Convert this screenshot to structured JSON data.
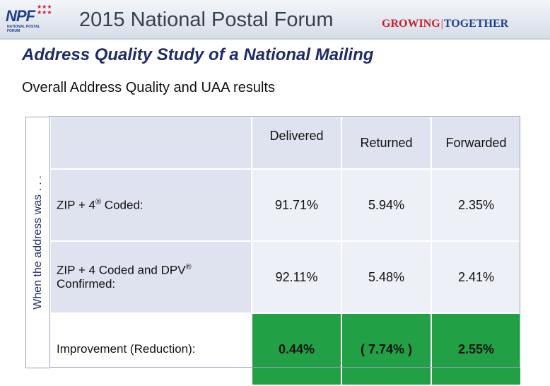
{
  "header": {
    "logo_text": "NPF",
    "logo_subtext": "NATIONAL POSTAL FORUM",
    "event_title": "2015 National Postal Forum",
    "tagline_left": "GROWING",
    "tagline_sep": "|",
    "tagline_right": "TOGETHER"
  },
  "slide": {
    "title": "Address Quality Study of a National Mailing",
    "subtitle": "Overall Address Quality and UAA results",
    "side_label": "When the address was . . ."
  },
  "table": {
    "columns": [
      "Delivered",
      "Returned",
      "Forwarded"
    ],
    "rows": [
      {
        "label": "ZIP + 4",
        "label_sup": "®",
        "label_suffix": " Coded:",
        "values": [
          "91.71%",
          "5.94%",
          "2.35%"
        ]
      },
      {
        "label": "ZIP + 4 Coded and DPV",
        "label_sup": "®",
        "label_suffix": " Confirmed:",
        "values": [
          "92.11%",
          "5.48%",
          "2.41%"
        ]
      },
      {
        "label": "Improvement (Reduction):",
        "values": [
          "0.44%",
          "( 7.74% )",
          "2.55%"
        ]
      }
    ]
  },
  "colors": {
    "title_blue": "#1f2c66",
    "cell_light": "#eef0f7",
    "cell_header": "#dfe3ef",
    "highlight_green": "#22a045",
    "brand_red": "#c8202a"
  }
}
